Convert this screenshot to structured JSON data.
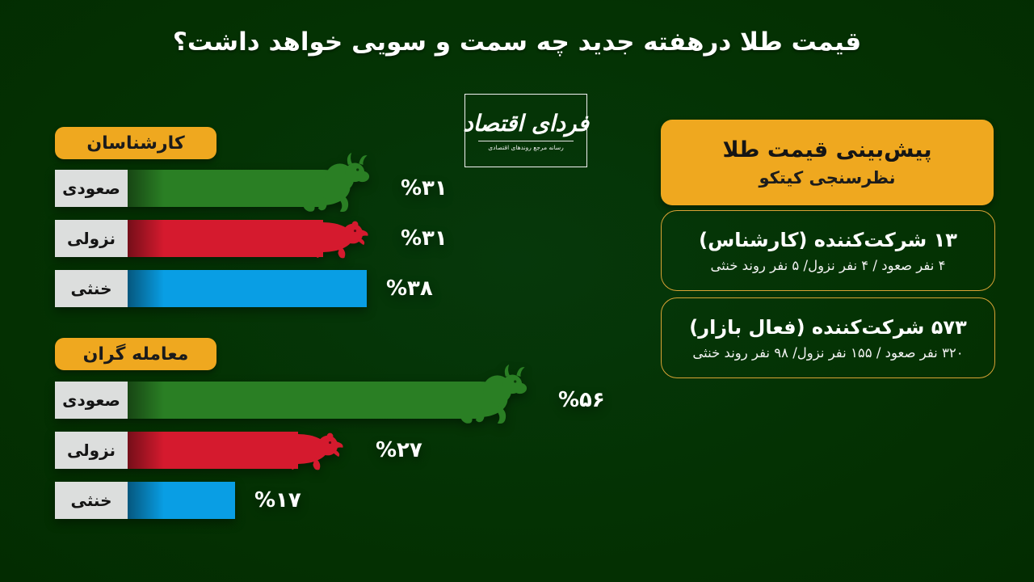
{
  "title": "قیمت طلا درهفته جدید چه سمت و سویی خواهد داشت؟",
  "logo": {
    "name": "فردای اقتصاد",
    "tagline": "رسانه مرجع روندهای اقتصادی"
  },
  "panel": {
    "header_line1": "پیش‌بینی قیمت طلا",
    "header_line2": "نظرسنجی کیتکو",
    "boxes": [
      {
        "title": "۱۳ شرکت‌کننده (کارشناس)",
        "detail": "۴ نفر صعود / ۴ نفر نزول/ ۵ نفر روند خنثی"
      },
      {
        "title": "۵۷۳ شرکت‌کننده (فعال بازار)",
        "detail": "۳۲۰ نفر صعود / ۱۵۵ نفر نزول/ ۹۸ نفر روند خنثی"
      }
    ]
  },
  "colors": {
    "background": "#043203",
    "accent_yellow": "#efa81f",
    "box_border_gold": "#d9a335",
    "bull_green": "#2a7f24",
    "bear_red": "#d51a2e",
    "neutral_blue": "#099ee4",
    "label_gray": "#dcdedd"
  },
  "chart_data": {
    "type": "bar",
    "orientation": "horizontal",
    "unit": "percent",
    "xlim": [
      0,
      100
    ],
    "groups": [
      {
        "label": "کارشناسان",
        "bars": [
          {
            "category": "صعودی",
            "value": 31,
            "display": "%۳۱",
            "color": "#2a7f24",
            "icon": "bull"
          },
          {
            "category": "نزولی",
            "value": 31,
            "display": "%۳۱",
            "color": "#d51a2e",
            "icon": "bear"
          },
          {
            "category": "خنثی",
            "value": 38,
            "display": "%۳۸",
            "color": "#099ee4",
            "icon": null
          }
        ]
      },
      {
        "label": "معامله گران",
        "bars": [
          {
            "category": "صعودی",
            "value": 56,
            "display": "%۵۶",
            "color": "#2a7f24",
            "icon": "bull"
          },
          {
            "category": "نزولی",
            "value": 27,
            "display": "%۲۷",
            "color": "#d51a2e",
            "icon": "bear"
          },
          {
            "category": "خنثی",
            "value": 17,
            "display": "%۱۷",
            "color": "#099ee4",
            "icon": null
          }
        ]
      }
    ]
  }
}
